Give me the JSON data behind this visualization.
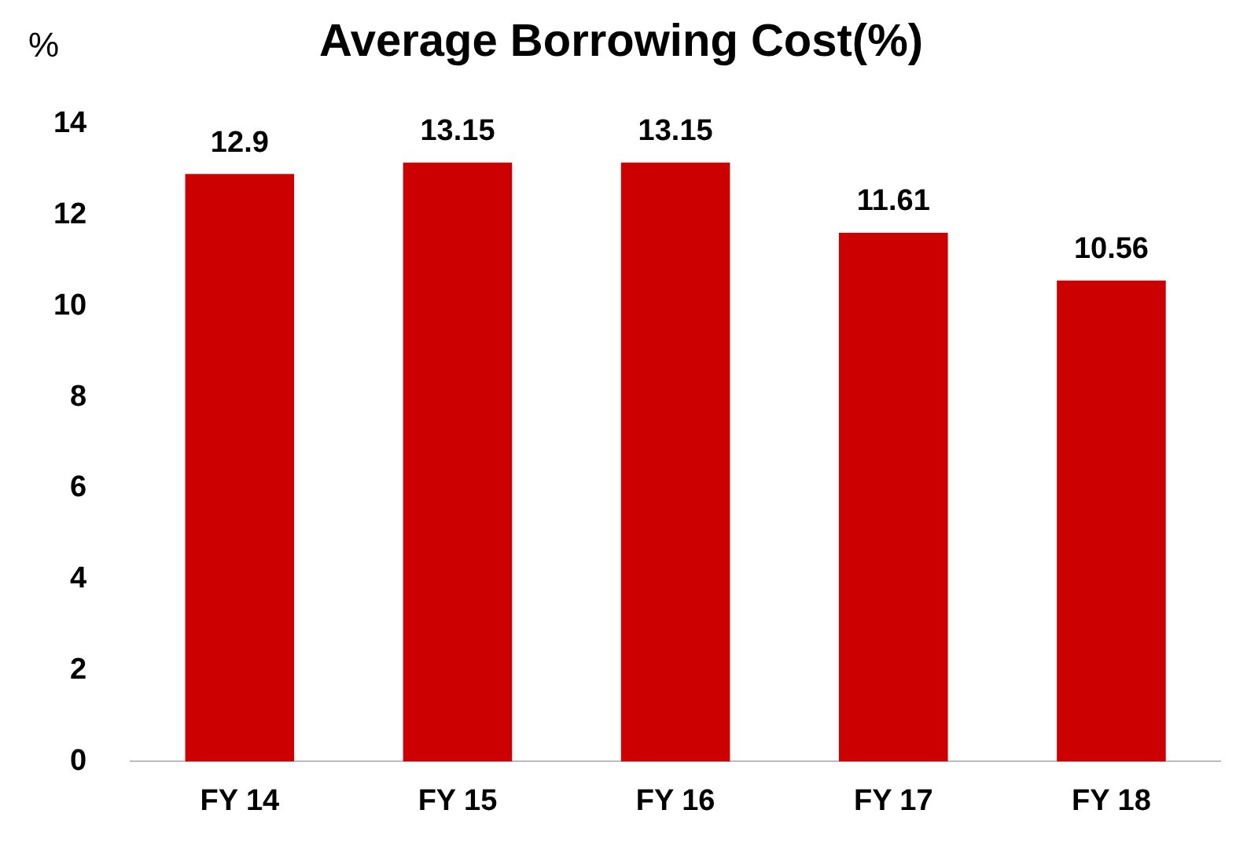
{
  "chart_data": {
    "type": "bar",
    "title": "Average Borrowing Cost(%)",
    "ylabel": "%",
    "categories": [
      "FY 14",
      "FY 15",
      "FY 16",
      "FY 17",
      "FY 18"
    ],
    "values": [
      12.9,
      13.15,
      13.15,
      11.61,
      10.56
    ],
    "color": "#cc0000",
    "ylim": [
      0,
      14
    ],
    "yticks": [
      0,
      2,
      4,
      6,
      8,
      10,
      12,
      14
    ],
    "grid": false,
    "legend": false,
    "data_labels": true
  }
}
